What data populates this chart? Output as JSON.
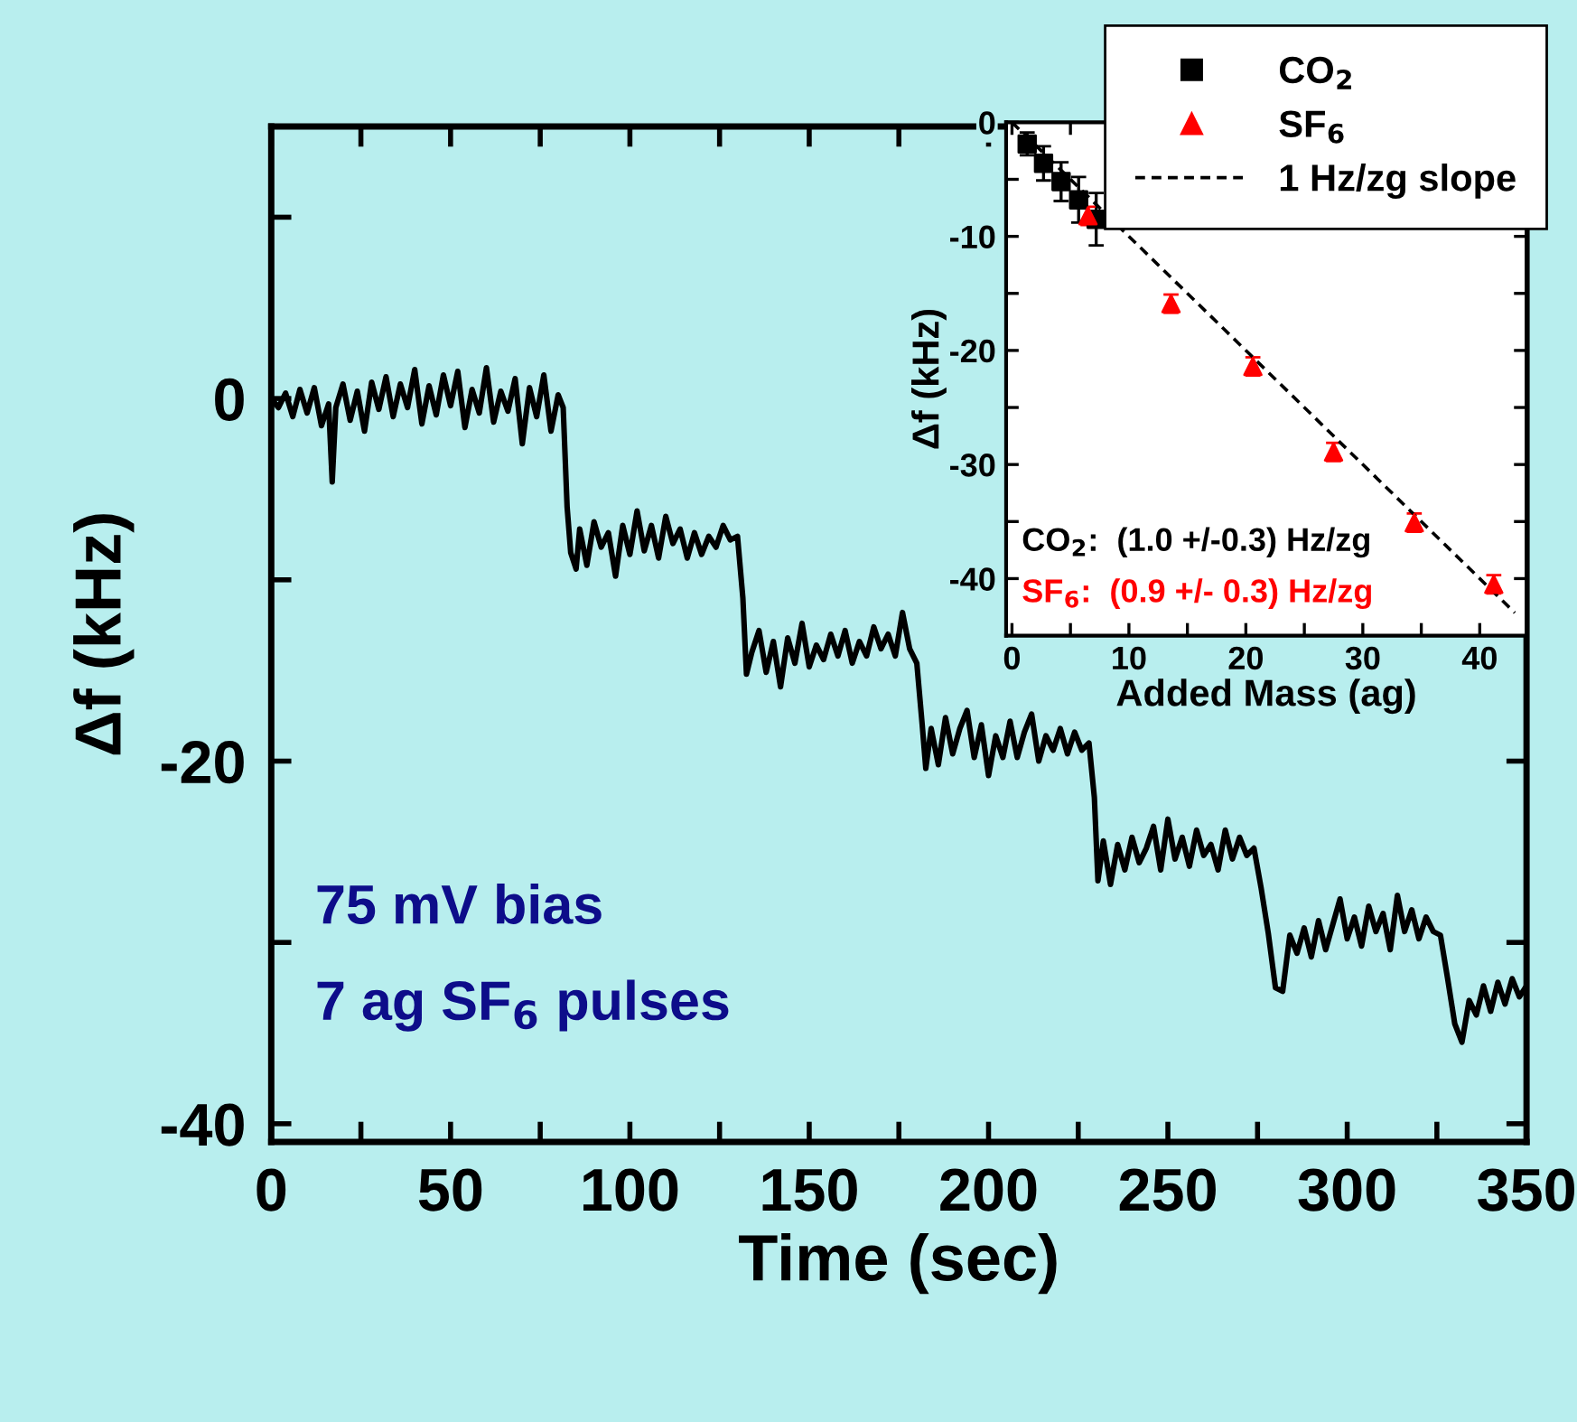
{
  "chart_data": [
    {
      "type": "line",
      "xlabel": "Time (sec)",
      "ylabel": "Δf (kHz)",
      "color": "#000000",
      "x": [
        0,
        2,
        4,
        6,
        8,
        10,
        12,
        14,
        16,
        17,
        18,
        20,
        22,
        24,
        26,
        28,
        30,
        32,
        34,
        36,
        38,
        40,
        42,
        44,
        46,
        48,
        50,
        52,
        54,
        56,
        58,
        60,
        62,
        64,
        66,
        68,
        70,
        72,
        74,
        76,
        78,
        80,
        81.4,
        82.5,
        83.5,
        85,
        86,
        88,
        90,
        92,
        94,
        96,
        98,
        100,
        102,
        104,
        106,
        108,
        110,
        112,
        114,
        116,
        118,
        120,
        122,
        124,
        126,
        128,
        130,
        131.5,
        132.5,
        134,
        136,
        138,
        140,
        142,
        144,
        146,
        148,
        150,
        152,
        154,
        156,
        158,
        160,
        162,
        164,
        166,
        168,
        170,
        172,
        174,
        176,
        178,
        180,
        181.5,
        182.5,
        184,
        186,
        188,
        190,
        192,
        194,
        196,
        198,
        200,
        202,
        204,
        206,
        208,
        210,
        212,
        214,
        216,
        218,
        220,
        222,
        224,
        226,
        228,
        229.5,
        230.5,
        232,
        234,
        236,
        238,
        240,
        242,
        244,
        246,
        248,
        250,
        252,
        254,
        256,
        258,
        260,
        262,
        264,
        266,
        268,
        270,
        272,
        274,
        276,
        278,
        280,
        282,
        284,
        286,
        288,
        290,
        292,
        294,
        296,
        298,
        300,
        302,
        304,
        306,
        308,
        310,
        312,
        314,
        316,
        318,
        320,
        322,
        324,
        326,
        328,
        330,
        332,
        334,
        336,
        338,
        340,
        342,
        344,
        346,
        348,
        350
      ],
      "values": [
        0,
        -0.5,
        0.3,
        -1,
        0.5,
        -0.8,
        0.6,
        -1.5,
        -0.3,
        -4.6,
        -0.5,
        0.8,
        -1.2,
        0.4,
        -1.8,
        0.9,
        -0.6,
        1.2,
        -1,
        0.8,
        -0.5,
        1.6,
        -1.4,
        0.7,
        -0.9,
        1.3,
        -0.4,
        1.5,
        -1.6,
        0.5,
        -0.8,
        1.7,
        -1.3,
        0.4,
        -0.7,
        1.1,
        -2.5,
        0.6,
        -1,
        1.3,
        -1.8,
        0.2,
        -0.5,
        -6,
        -8.5,
        -9.4,
        -7.2,
        -9.2,
        -6.8,
        -8.2,
        -7.4,
        -9.8,
        -7,
        -8.6,
        -6.2,
        -8.4,
        -7,
        -8.8,
        -6.5,
        -8,
        -7.2,
        -8.8,
        -7.4,
        -8.6,
        -7.6,
        -8.2,
        -7,
        -7.8,
        -7.6,
        -11,
        -15.2,
        -14,
        -12.8,
        -15.1,
        -13.4,
        -15.9,
        -13.2,
        -14.6,
        -12.4,
        -14.8,
        -13.6,
        -14.4,
        -13,
        -14.2,
        -12.8,
        -14.6,
        -13.4,
        -14.2,
        -12.6,
        -13.8,
        -13,
        -14.2,
        -11.8,
        -13.8,
        -14.6,
        -18,
        -20.4,
        -18.2,
        -20.2,
        -17.6,
        -19.6,
        -18.2,
        -17.2,
        -19.8,
        -18,
        -20.8,
        -18.6,
        -19.8,
        -17.8,
        -19.8,
        -18.4,
        -17.4,
        -20,
        -18.6,
        -19.4,
        -18.2,
        -19.6,
        -18.4,
        -19.4,
        -19,
        -22,
        -26.6,
        -24.4,
        -26.8,
        -24.6,
        -26,
        -24.2,
        -25.6,
        -24.8,
        -23.6,
        -26,
        -23.2,
        -25.4,
        -24.2,
        -25.8,
        -23.8,
        -25.2,
        -24.6,
        -26,
        -23.8,
        -25.4,
        -24.2,
        -25.2,
        -24.8,
        -27,
        -29.5,
        -32.5,
        -32.7,
        -29.6,
        -30.6,
        -29.2,
        -30.8,
        -28.8,
        -30.4,
        -29,
        -27.6,
        -29.8,
        -28.6,
        -30.2,
        -28,
        -29.4,
        -28.4,
        -30.4,
        -27.4,
        -29.4,
        -28.2,
        -29.8,
        -28.6,
        -29.4,
        -29.6,
        -32,
        -34.5,
        -35.5,
        -33.2,
        -34,
        -32.4,
        -33.8,
        -32.2,
        -33.4,
        -32,
        -33,
        -32.4
      ],
      "xlim": [
        0,
        350
      ],
      "ylim": [
        -41,
        15
      ],
      "xticks": [
        0,
        {
          "value": 25,
          "label": null
        },
        50,
        {
          "value": 75,
          "label": null
        },
        100,
        {
          "value": 125,
          "label": null
        },
        150,
        {
          "value": 175,
          "label": null
        },
        200,
        {
          "value": 225,
          "label": null
        },
        250,
        {
          "value": 275,
          "label": null
        },
        300,
        {
          "value": 325,
          "label": null
        },
        350
      ],
      "yticks": [
        {
          "value": 10,
          "label": null
        },
        0,
        {
          "value": -10,
          "label": null
        },
        -20,
        {
          "value": -30,
          "label": null
        },
        -40
      ],
      "annotations": [
        "75 mV bias",
        "7 ag SF$_{6}$ pulses"
      ]
    },
    {
      "type": "scatter",
      "xlabel": "Added Mass (ag)",
      "ylabel": "Δf (kHz)",
      "legend": "top right",
      "xlim": [
        -0.5,
        44
      ],
      "ylim": [
        -45,
        0
      ],
      "xticks": [
        0,
        {
          "value": 5,
          "label": null
        },
        10,
        {
          "value": 15,
          "label": null
        },
        20,
        {
          "value": 25,
          "label": null
        },
        30,
        {
          "value": 35,
          "label": null
        },
        40
      ],
      "yticks": [
        0,
        {
          "value": -5,
          "label": null
        },
        -10,
        {
          "value": -15,
          "label": null
        },
        -20,
        {
          "value": -25,
          "label": null
        },
        -30,
        {
          "value": -35,
          "label": null
        },
        -40
      ],
      "series": [
        {
          "name": "CO$_{2}$",
          "color": "#000000",
          "marker": "square",
          "x": [
            1.3,
            2.7,
            4.2,
            5.7,
            7.2
          ],
          "values": [
            -1.9,
            -3.6,
            -5.2,
            -6.8,
            -8.5
          ],
          "errors": [
            1,
            1.5,
            1.7,
            2,
            2.3
          ]
        },
        {
          "name": "SF$_{6}$",
          "color": "#ff0000",
          "marker": "triangle",
          "x": [
            6.5,
            13.6,
            20.6,
            27.5,
            34.4,
            41.2
          ],
          "values": [
            -8.2,
            -15.9,
            -21.4,
            -28.9,
            -35.1,
            -40.5
          ],
          "errors": [
            0.8,
            0.8,
            0.8,
            0.8,
            0.8,
            0.8
          ]
        },
        {
          "name": "1 Hz/zg slope",
          "type": "line",
          "color": "#000000",
          "line_style": "dashed",
          "marker": "none",
          "x": [
            0,
            43
          ],
          "values": [
            0,
            -43
          ]
        }
      ],
      "annotations": [
        "CO$_{2}$:  (1.0 +/-0.3) Hz/zg",
        "SF$_{6}$:  (0.9 +/- 0.3) Hz/zg"
      ]
    }
  ]
}
